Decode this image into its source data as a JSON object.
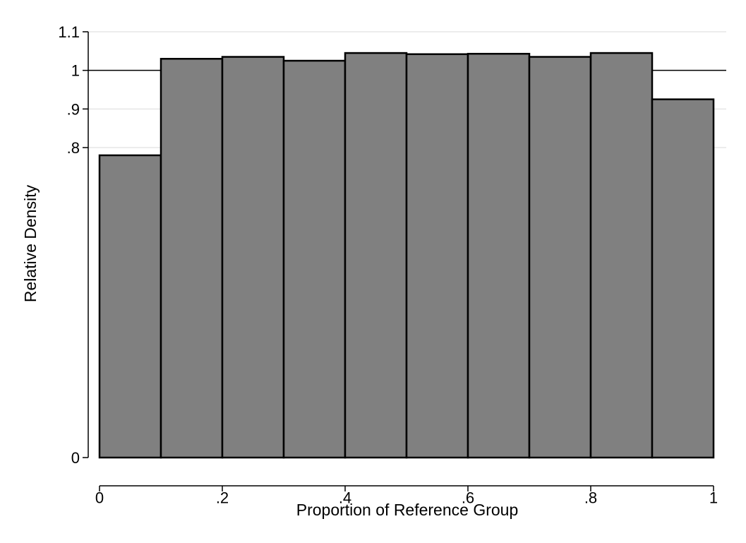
{
  "chart_data": {
    "type": "bar",
    "bin_edges": [
      0,
      0.1,
      0.2,
      0.3,
      0.4,
      0.5,
      0.6,
      0.7,
      0.8,
      0.9,
      1.0
    ],
    "values": [
      0.78,
      1.03,
      1.035,
      1.025,
      1.045,
      1.042,
      1.043,
      1.035,
      1.045,
      0.925
    ],
    "xlabel": "Proportion of Reference Group",
    "ylabel": "Relative Density",
    "xlim": [
      0,
      1
    ],
    "ylim": [
      0,
      1.1
    ],
    "x_ticks": [
      {
        "value": 0,
        "label": "0"
      },
      {
        "value": 0.2,
        "label": ".2"
      },
      {
        "value": 0.4,
        "label": ".4"
      },
      {
        "value": 0.6,
        "label": ".6"
      },
      {
        "value": 0.8,
        "label": ".8"
      },
      {
        "value": 1.0,
        "label": "1"
      }
    ],
    "y_ticks": [
      {
        "value": 0,
        "label": "0"
      },
      {
        "value": 0.8,
        "label": ".8"
      },
      {
        "value": 0.9,
        "label": ".9"
      },
      {
        "value": 1.0,
        "label": "1"
      },
      {
        "value": 1.1,
        "label": "1.1"
      }
    ],
    "y_axis_break": "between 0 and .8",
    "reference_line_y": 1.0,
    "grid": true,
    "legend": "none",
    "colors": {
      "bar_fill": "#808080",
      "bar_edge": "#000000",
      "grid": "#e6e6e6",
      "background": "#ffffff"
    }
  }
}
